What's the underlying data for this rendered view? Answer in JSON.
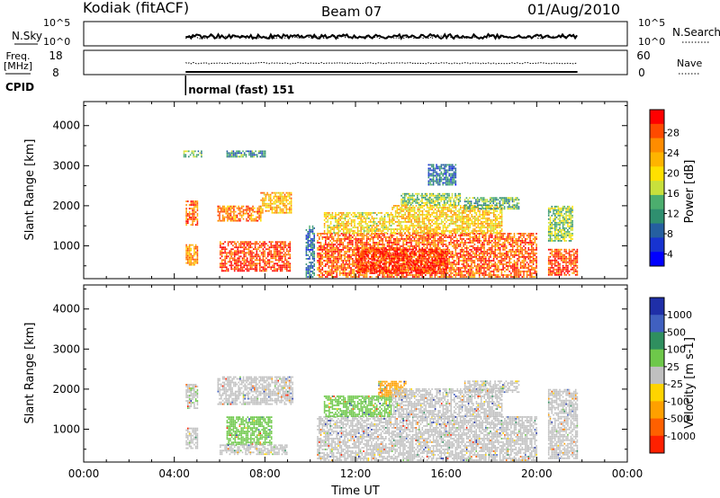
{
  "header": {
    "station": "Kodiak (fitACF)",
    "beam": "Beam 07",
    "date": "01/Aug/2010"
  },
  "strip_panels": {
    "nsky": {
      "label": "N.Sky",
      "ticks": [
        "10^5",
        "10^0"
      ]
    },
    "nsearch": {
      "label": "N.Search",
      "ticks": [
        "10^5",
        "10^0"
      ]
    },
    "freq": {
      "label_line1": "Freq.",
      "label_line2": "[MHz]",
      "ticks": [
        "18",
        "8"
      ]
    },
    "nave": {
      "label": "Nave",
      "ticks": [
        "60",
        "0"
      ]
    },
    "cpid": {
      "label": "CPID",
      "program": "normal (fast) 151",
      "start_time": "04:30"
    }
  },
  "chart_data": [
    {
      "type": "heatmap",
      "panel": "power",
      "ylabel": "Slant Range [km]",
      "xlabel": "",
      "y_ticks": [
        1000,
        2000,
        3000,
        4000
      ],
      "ylim": [
        180,
        4600
      ],
      "x_ticks": [
        "00:00",
        "04:00",
        "08:00",
        "12:00",
        "16:00",
        "20:00",
        "00:00"
      ],
      "xlim_hours": [
        0,
        24
      ],
      "colorbar": {
        "label": "Power [dB]",
        "ticks": [
          "28",
          "24",
          "20",
          "16",
          "12",
          "8",
          "4"
        ],
        "colors": [
          "#ff0000",
          "#ff4a00",
          "#ff8c00",
          "#ffb400",
          "#ffe000",
          "#c8e03c",
          "#4cae6e",
          "#2f8f6f",
          "#255fa0",
          "#1733d0",
          "#0000ff"
        ]
      },
      "echo_regions": [
        {
          "t0": 4.5,
          "t1": 5.0,
          "r0": 500,
          "r1": 1000,
          "level": 24
        },
        {
          "t0": 4.5,
          "t1": 5.0,
          "r0": 1500,
          "r1": 2100,
          "level": 26
        },
        {
          "t0": 4.4,
          "t1": 5.2,
          "r0": 3200,
          "r1": 3350,
          "level": 14
        },
        {
          "t0": 5.9,
          "t1": 7.8,
          "r0": 1600,
          "r1": 2000,
          "level": 25
        },
        {
          "t0": 7.8,
          "t1": 9.2,
          "r0": 1800,
          "r1": 2300,
          "level": 22
        },
        {
          "t0": 6.0,
          "t1": 9.1,
          "r0": 350,
          "r1": 1100,
          "level": 28
        },
        {
          "t0": 6.3,
          "t1": 8.0,
          "r0": 3200,
          "r1": 3350,
          "level": 12
        },
        {
          "t0": 9.8,
          "t1": 10.2,
          "r0": 200,
          "r1": 1500,
          "level": 10
        },
        {
          "t0": 10.3,
          "t1": 20.0,
          "r0": 200,
          "r1": 1300,
          "level": 27
        },
        {
          "t0": 12.0,
          "t1": 16.0,
          "r0": 300,
          "r1": 900,
          "level": 29
        },
        {
          "t0": 10.6,
          "t1": 13.6,
          "r0": 1300,
          "r1": 1800,
          "level": 20
        },
        {
          "t0": 13.6,
          "t1": 18.5,
          "r0": 1300,
          "r1": 2000,
          "level": 21
        },
        {
          "t0": 14.0,
          "t1": 16.6,
          "r0": 2000,
          "r1": 2300,
          "level": 16
        },
        {
          "t0": 16.8,
          "t1": 19.2,
          "r0": 1900,
          "r1": 2200,
          "level": 14
        },
        {
          "t0": 15.2,
          "t1": 16.4,
          "r0": 2500,
          "r1": 3000,
          "level": 10
        },
        {
          "t0": 20.5,
          "t1": 21.8,
          "r0": 250,
          "r1": 900,
          "level": 28
        },
        {
          "t0": 20.5,
          "t1": 21.6,
          "r0": 1100,
          "r1": 2000,
          "level": 16
        }
      ]
    },
    {
      "type": "heatmap",
      "panel": "velocity",
      "ylabel": "Slant Range [km]",
      "xlabel": "Time UT",
      "y_ticks": [
        1000,
        2000,
        3000,
        4000
      ],
      "ylim": [
        180,
        4600
      ],
      "x_ticks": [
        "00:00",
        "04:00",
        "08:00",
        "12:00",
        "16:00",
        "20:00",
        "00:00"
      ],
      "xlim_hours": [
        0,
        24
      ],
      "colorbar": {
        "label": "Velocity [m s-1]",
        "ticks": [
          "1000",
          "500",
          "100",
          "25",
          "-25",
          "-100",
          "-500",
          "-1000"
        ],
        "colors": [
          "#1f2fa8",
          "#4060c0",
          "#2f8f5f",
          "#6ec84a",
          "#c0c0c0",
          "#ffd400",
          "#ffa000",
          "#ff6000",
          "#ff2000"
        ]
      },
      "echo_regions": [
        {
          "t0": 4.5,
          "t1": 5.0,
          "r0": 500,
          "r1": 1000,
          "level": 0
        },
        {
          "t0": 4.5,
          "t1": 5.0,
          "r0": 1500,
          "r1": 2100,
          "level": 10
        },
        {
          "t0": 5.9,
          "t1": 9.2,
          "r0": 1600,
          "r1": 2300,
          "level": 0
        },
        {
          "t0": 6.3,
          "t1": 8.3,
          "r0": 600,
          "r1": 1300,
          "level": 150
        },
        {
          "t0": 6.0,
          "t1": 9.0,
          "r0": 350,
          "r1": 600,
          "level": 0
        },
        {
          "t0": 10.3,
          "t1": 20.0,
          "r0": 200,
          "r1": 1300,
          "level": 0
        },
        {
          "t0": 10.6,
          "t1": 13.6,
          "r0": 1300,
          "r1": 1800,
          "level": 80
        },
        {
          "t0": 13.0,
          "t1": 14.2,
          "r0": 1800,
          "r1": 2200,
          "level": -150
        },
        {
          "t0": 13.6,
          "t1": 18.5,
          "r0": 1300,
          "r1": 2000,
          "level": 0
        },
        {
          "t0": 16.8,
          "t1": 19.2,
          "r0": 1900,
          "r1": 2200,
          "level": 0
        },
        {
          "t0": 20.5,
          "t1": 21.8,
          "r0": 250,
          "r1": 2000,
          "level": 0
        }
      ]
    }
  ]
}
